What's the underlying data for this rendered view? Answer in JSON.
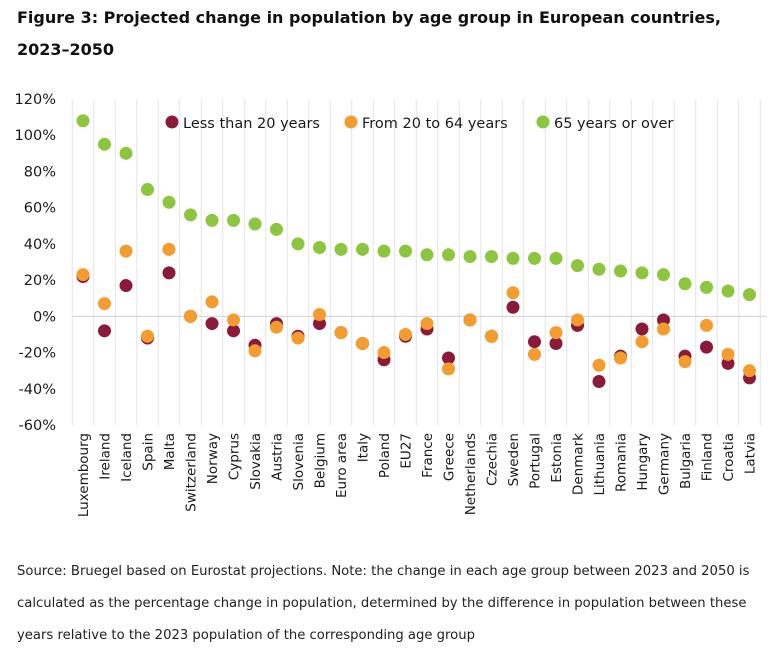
{
  "title": "Figure 3: Projected change in population by age group in European countries, 2023–2050",
  "source": "Source: Bruegel based on Eurostat projections. Note: the change in each age group between 2023 and 2050 is calculated as the percentage change in population, determined by the difference in population between these years relative to the 2023 population of the corresponding age group",
  "chart_data": {
    "type": "scatter",
    "title": "Projected change in population by age group in European countries, 2023–2050",
    "xlabel": "",
    "ylabel": "",
    "ylim": [
      -60,
      120
    ],
    "yticks": [
      -60,
      -40,
      -20,
      0,
      20,
      40,
      60,
      80,
      100,
      120
    ],
    "ytick_labels": [
      "-60%",
      "-40%",
      "-20%",
      "0%",
      "20%",
      "40%",
      "60%",
      "80%",
      "100%",
      "120%"
    ],
    "grid": "vertical",
    "legend_position": "top",
    "categories": [
      "Luxembourg",
      "Ireland",
      "Iceland",
      "Spain",
      "Malta",
      "Switzerland",
      "Norway",
      "Cyprus",
      "Slovakia",
      "Austria",
      "Slovenia",
      "Belgium",
      "Euro area",
      "Italy",
      "Poland",
      "EU27",
      "France",
      "Greece",
      "Netherlands",
      "Czechia",
      "Sweden",
      "Portugal",
      "Estonia",
      "Denmark",
      "Lithuania",
      "Romania",
      "Hungary",
      "Germany",
      "Bulgaria",
      "Finland",
      "Croatia",
      "Latvia"
    ],
    "series": [
      {
        "name": "Less than 20 years",
        "color": "#8b1a3a",
        "values": [
          22,
          -8,
          17,
          -12,
          24,
          0,
          -4,
          -8,
          -16,
          -4,
          -11,
          -4,
          -9,
          -15,
          -24,
          -11,
          -7,
          -23,
          -2,
          -11,
          5,
          -14,
          -15,
          -5,
          -36,
          -22,
          -7,
          -2,
          -22,
          -17,
          -26,
          -34
        ]
      },
      {
        "name": "From 20 to 64 years",
        "color": "#f49c2e",
        "values": [
          23,
          7,
          36,
          -11,
          37,
          0,
          8,
          -2,
          -19,
          -6,
          -12,
          1,
          -9,
          -15,
          -20,
          -10,
          -4,
          -29,
          -2,
          -11,
          13,
          -21,
          -9,
          -2,
          -27,
          -23,
          -14,
          -7,
          -25,
          -5,
          -21,
          -30
        ]
      },
      {
        "name": "65 years or over",
        "color": "#8cc63f",
        "values": [
          108,
          95,
          90,
          70,
          63,
          56,
          53,
          53,
          51,
          48,
          40,
          38,
          37,
          37,
          36,
          36,
          34,
          34,
          33,
          33,
          32,
          32,
          32,
          28,
          26,
          25,
          24,
          23,
          18,
          16,
          14,
          12
        ]
      }
    ]
  }
}
